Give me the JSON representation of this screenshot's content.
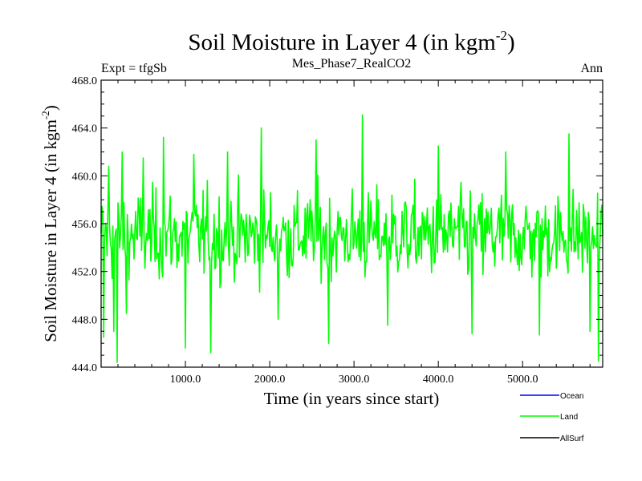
{
  "chart_data": {
    "type": "line",
    "title": "Soil Moisture in Layer 4 (in kgm",
    "title_sup": "-2",
    "title_close": ")",
    "subtitle": "Mes_Phase7_RealCO2",
    "left_note": "Expt = tfgSb",
    "right_note": "Ann",
    "xlabel": "Time (in years since start)",
    "ylabel": "Soil Moisture in Layer 4 (in kgm",
    "ylabel_sup": "-2",
    "ylabel_close": ")",
    "xlim": [
      0,
      5950
    ],
    "ylim": [
      444.0,
      468.0
    ],
    "x_ticks": [
      "1000.0",
      "2000.0",
      "3000.0",
      "4000.0",
      "5000.0"
    ],
    "x_tick_values": [
      1000,
      2000,
      3000,
      4000,
      5000
    ],
    "y_ticks": [
      "444.0",
      "448.0",
      "452.0",
      "456.0",
      "460.0",
      "464.0",
      "468.0"
    ],
    "y_tick_values": [
      444,
      448,
      452,
      456,
      460,
      464,
      468
    ],
    "grid": false,
    "legend_placement": "bottom-right",
    "series": [
      {
        "name": "Ocean",
        "color": "#0000ff",
        "values": []
      },
      {
        "name": "Land",
        "color": "#00ff00",
        "mean": 455.0,
        "min": 444.4,
        "max": 465.1,
        "values": [
          {
            "x": 0,
            "y": 455.2
          },
          {
            "x": 30,
            "y": 446.5
          },
          {
            "x": 90,
            "y": 460.8
          },
          {
            "x": 150,
            "y": 447.0
          },
          {
            "x": 190,
            "y": 444.4
          },
          {
            "x": 250,
            "y": 462.0
          },
          {
            "x": 300,
            "y": 448.5
          },
          {
            "x": 500,
            "y": 461.5
          },
          {
            "x": 740,
            "y": 463.2
          },
          {
            "x": 1000,
            "y": 445.6
          },
          {
            "x": 1100,
            "y": 461.8
          },
          {
            "x": 1300,
            "y": 445.2
          },
          {
            "x": 1500,
            "y": 462.0
          },
          {
            "x": 1900,
            "y": 464.0
          },
          {
            "x": 2100,
            "y": 448.0
          },
          {
            "x": 2550,
            "y": 463.0
          },
          {
            "x": 2700,
            "y": 446.0
          },
          {
            "x": 3100,
            "y": 465.1
          },
          {
            "x": 3400,
            "y": 447.5
          },
          {
            "x": 4000,
            "y": 462.5
          },
          {
            "x": 4400,
            "y": 446.8
          },
          {
            "x": 4800,
            "y": 462.0
          },
          {
            "x": 5200,
            "y": 446.7
          },
          {
            "x": 5550,
            "y": 463.5
          },
          {
            "x": 5800,
            "y": 447.0
          },
          {
            "x": 5900,
            "y": 444.5
          },
          {
            "x": 5950,
            "y": 455.0
          }
        ]
      },
      {
        "name": "AllSurf",
        "color": "#000000",
        "values": []
      }
    ]
  }
}
